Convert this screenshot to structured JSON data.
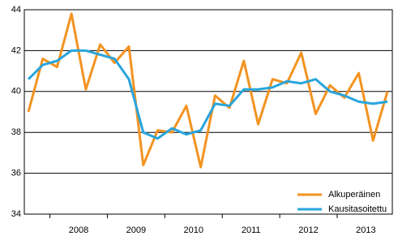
{
  "chart_data": {
    "type": "line",
    "categories": [
      null,
      null,
      null,
      "2008",
      null,
      null,
      null,
      "2009",
      null,
      null,
      null,
      "2010",
      null,
      null,
      null,
      "2011",
      null,
      null,
      null,
      "2012",
      null,
      null,
      null,
      "2013",
      null,
      null
    ],
    "series": [
      {
        "name": "Alkuperäinen",
        "color": "#f39321",
        "values": [
          39.0,
          41.6,
          41.2,
          43.8,
          40.1,
          42.3,
          41.4,
          42.2,
          36.4,
          38.1,
          38.0,
          39.3,
          36.3,
          39.8,
          39.2,
          41.5,
          38.4,
          40.6,
          40.4,
          41.9,
          38.9,
          40.3,
          39.7,
          40.9,
          37.6,
          40.0
        ]
      },
      {
        "name": "Kausitasoitettu",
        "color": "#29a5dc",
        "values": [
          40.6,
          41.3,
          41.5,
          42.0,
          42.0,
          41.8,
          41.6,
          40.6,
          38.0,
          37.7,
          38.2,
          37.9,
          38.1,
          39.4,
          39.3,
          40.1,
          40.1,
          40.2,
          40.5,
          40.4,
          40.6,
          40.0,
          39.8,
          39.5,
          39.4,
          39.5
        ]
      }
    ],
    "ylim": [
      34,
      44
    ],
    "yticks": [
      34,
      36,
      38,
      40,
      42,
      44
    ],
    "grid": true,
    "legend": "lower right"
  }
}
